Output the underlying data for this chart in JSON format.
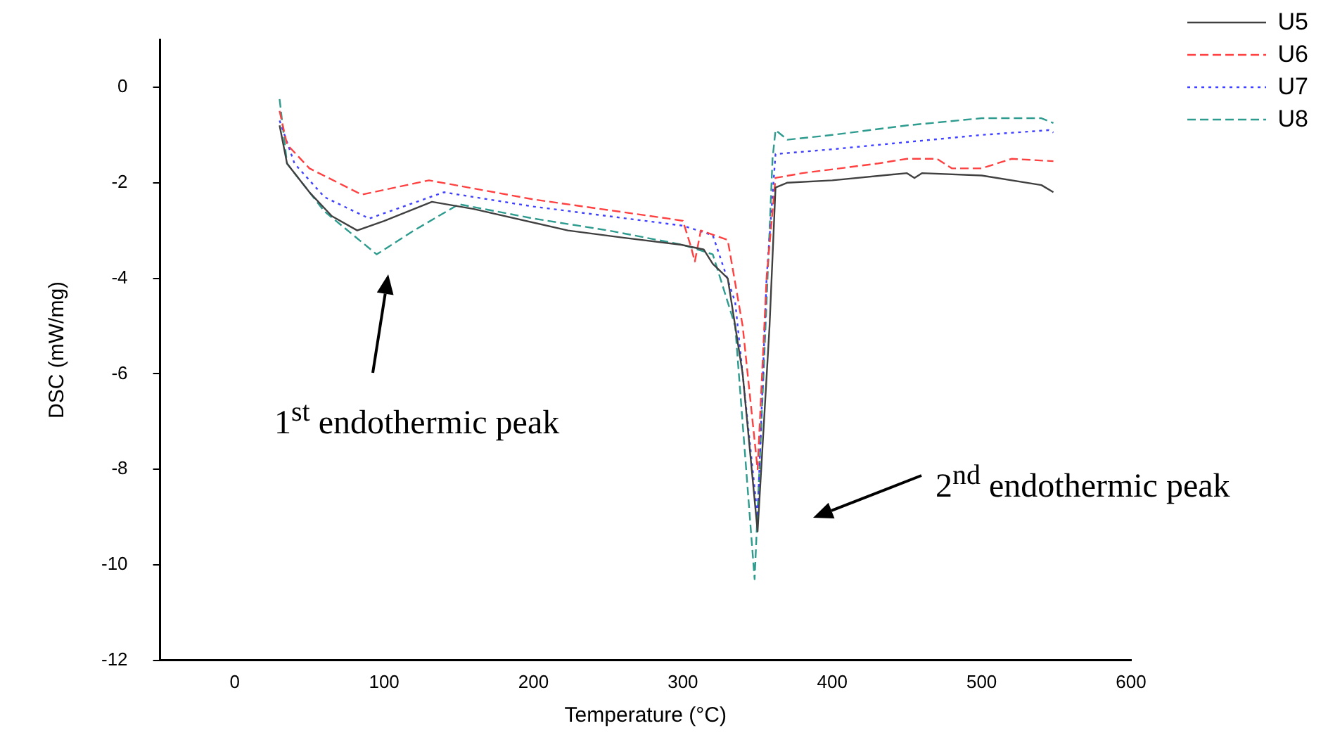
{
  "chart_data": {
    "type": "line",
    "xlabel": "Temperature (°C)",
    "ylabel": "DSC (mW/mg)",
    "xlim": [
      -50,
      600
    ],
    "xticks": [
      0,
      100,
      200,
      300,
      400,
      500,
      600
    ],
    "ylim": [
      -12,
      1
    ],
    "yticks": [
      -12,
      -10,
      -8,
      -6,
      -4,
      -2,
      0
    ],
    "grid": false,
    "legend": "top right",
    "marker": "none",
    "annotations": [
      "1$^{st}$  endothermic peak",
      "2$^{nd}$ endothermic peak"
    ],
    "series": [
      {
        "name": "U5",
        "color": "#404040",
        "line_style": "solid",
        "x": [
          30,
          35,
          50,
          65,
          82,
          100,
          132,
          160,
          223,
          260,
          299,
          314,
          320,
          330,
          340,
          350,
          358,
          362,
          370,
          400,
          450,
          455,
          460,
          500,
          540,
          548
        ],
        "values": [
          -0.8,
          -1.6,
          -2.2,
          -2.7,
          -3.0,
          -2.8,
          -2.4,
          -2.55,
          -3.0,
          -3.15,
          -3.3,
          -3.4,
          -3.7,
          -4.0,
          -6.0,
          -9.3,
          -5.0,
          -2.1,
          -2.0,
          -1.95,
          -1.8,
          -1.9,
          -1.8,
          -1.85,
          -2.05,
          -2.2
        ]
      },
      {
        "name": "U6",
        "color": "#ff4040",
        "line_style": "dashed",
        "x": [
          30,
          35,
          50,
          85,
          130,
          200,
          290,
          300,
          305,
          308,
          312,
          330,
          340,
          350,
          356,
          362,
          380,
          430,
          450,
          470,
          480,
          500,
          520,
          548
        ],
        "values": [
          -0.5,
          -1.2,
          -1.7,
          -2.25,
          -1.95,
          -2.35,
          -2.75,
          -2.8,
          -3.3,
          -3.65,
          -3.0,
          -3.2,
          -5.0,
          -8.0,
          -4.0,
          -1.9,
          -1.8,
          -1.6,
          -1.5,
          -1.5,
          -1.7,
          -1.7,
          -1.5,
          -1.55
        ]
      },
      {
        "name": "U7",
        "color": "#4040ff",
        "line_style": "dotted",
        "x": [
          30,
          40,
          60,
          90,
          140,
          200,
          250,
          300,
          320,
          335,
          350,
          356,
          362,
          400,
          450,
          500,
          545,
          548
        ],
        "values": [
          -0.7,
          -1.6,
          -2.3,
          -2.75,
          -2.2,
          -2.5,
          -2.7,
          -2.9,
          -3.1,
          -4.5,
          -9.0,
          -4.0,
          -1.4,
          -1.3,
          -1.15,
          -1.0,
          -0.9,
          -0.95
        ]
      },
      {
        "name": "U8",
        "color": "#2e9b8f",
        "line_style": "dashed",
        "x": [
          30,
          35,
          60,
          95,
          120,
          150,
          200,
          250,
          300,
          320,
          335,
          348,
          354,
          360,
          362,
          370,
          400,
          450,
          500,
          540,
          548
        ],
        "values": [
          -0.25,
          -1.6,
          -2.6,
          -3.5,
          -3.0,
          -2.45,
          -2.75,
          -3.0,
          -3.3,
          -3.5,
          -5.0,
          -10.3,
          -6.0,
          -1.5,
          -0.9,
          -1.1,
          -1.0,
          -0.8,
          -0.65,
          -0.65,
          -0.75
        ]
      }
    ]
  }
}
